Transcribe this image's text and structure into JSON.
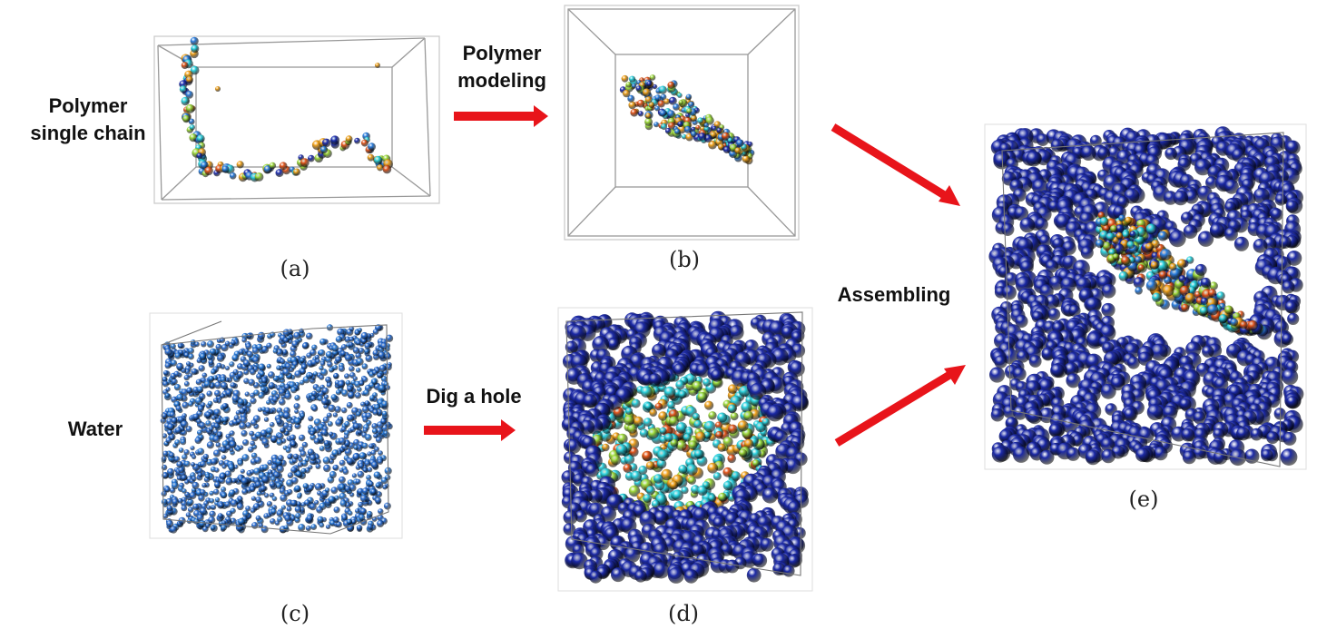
{
  "labels": {
    "polymer_single_chain": [
      "Polymer",
      "single chain"
    ],
    "polymer_modeling": [
      "Polymer",
      "modeling"
    ],
    "water": "Water",
    "dig_a_hole": "Dig a hole",
    "assembling": "Assembling"
  },
  "captions": {
    "a": "(a)",
    "b": "(b)",
    "c": "(c)",
    "d": "(d)",
    "e": "(e)"
  },
  "colors": {
    "arrow": "#e8141a",
    "water_bead": "#1c2aa8",
    "water_bead_small": "#2a6fd6",
    "polymer_palette": [
      "#1d2db0",
      "#2bd3e0",
      "#f2a31b",
      "#e4561c",
      "#9fdc3c",
      "#2a7ee0"
    ],
    "box_line": "#888888"
  }
}
